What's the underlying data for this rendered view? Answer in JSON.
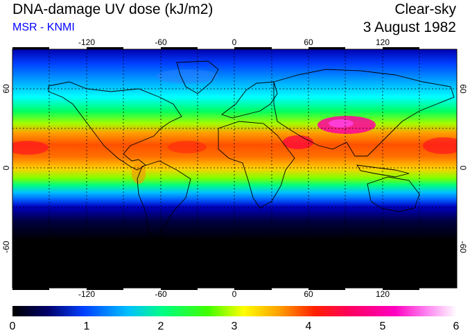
{
  "header": {
    "title": "DNA-damage UV dose (kJ/m2)",
    "subtitle": "MSR - KNMI",
    "condition": "Clear-sky",
    "date": "3 August 1982"
  },
  "map": {
    "lon_ticks": [
      "-120",
      "-60",
      "0",
      "60",
      "120"
    ],
    "lat_ticks": [
      "60",
      "0",
      "-60"
    ]
  },
  "colorbar": {
    "ticks": [
      "0",
      "1",
      "2",
      "3",
      "4",
      "5",
      "6"
    ]
  },
  "colors": {
    "title_accent": "#0000ff",
    "scale": [
      "#000000",
      "#0000a0",
      "#0040ff",
      "#00ffff",
      "#00ff00",
      "#ffff00",
      "#ff8000",
      "#ff0000",
      "#ff00a0",
      "#ffffff"
    ]
  }
}
